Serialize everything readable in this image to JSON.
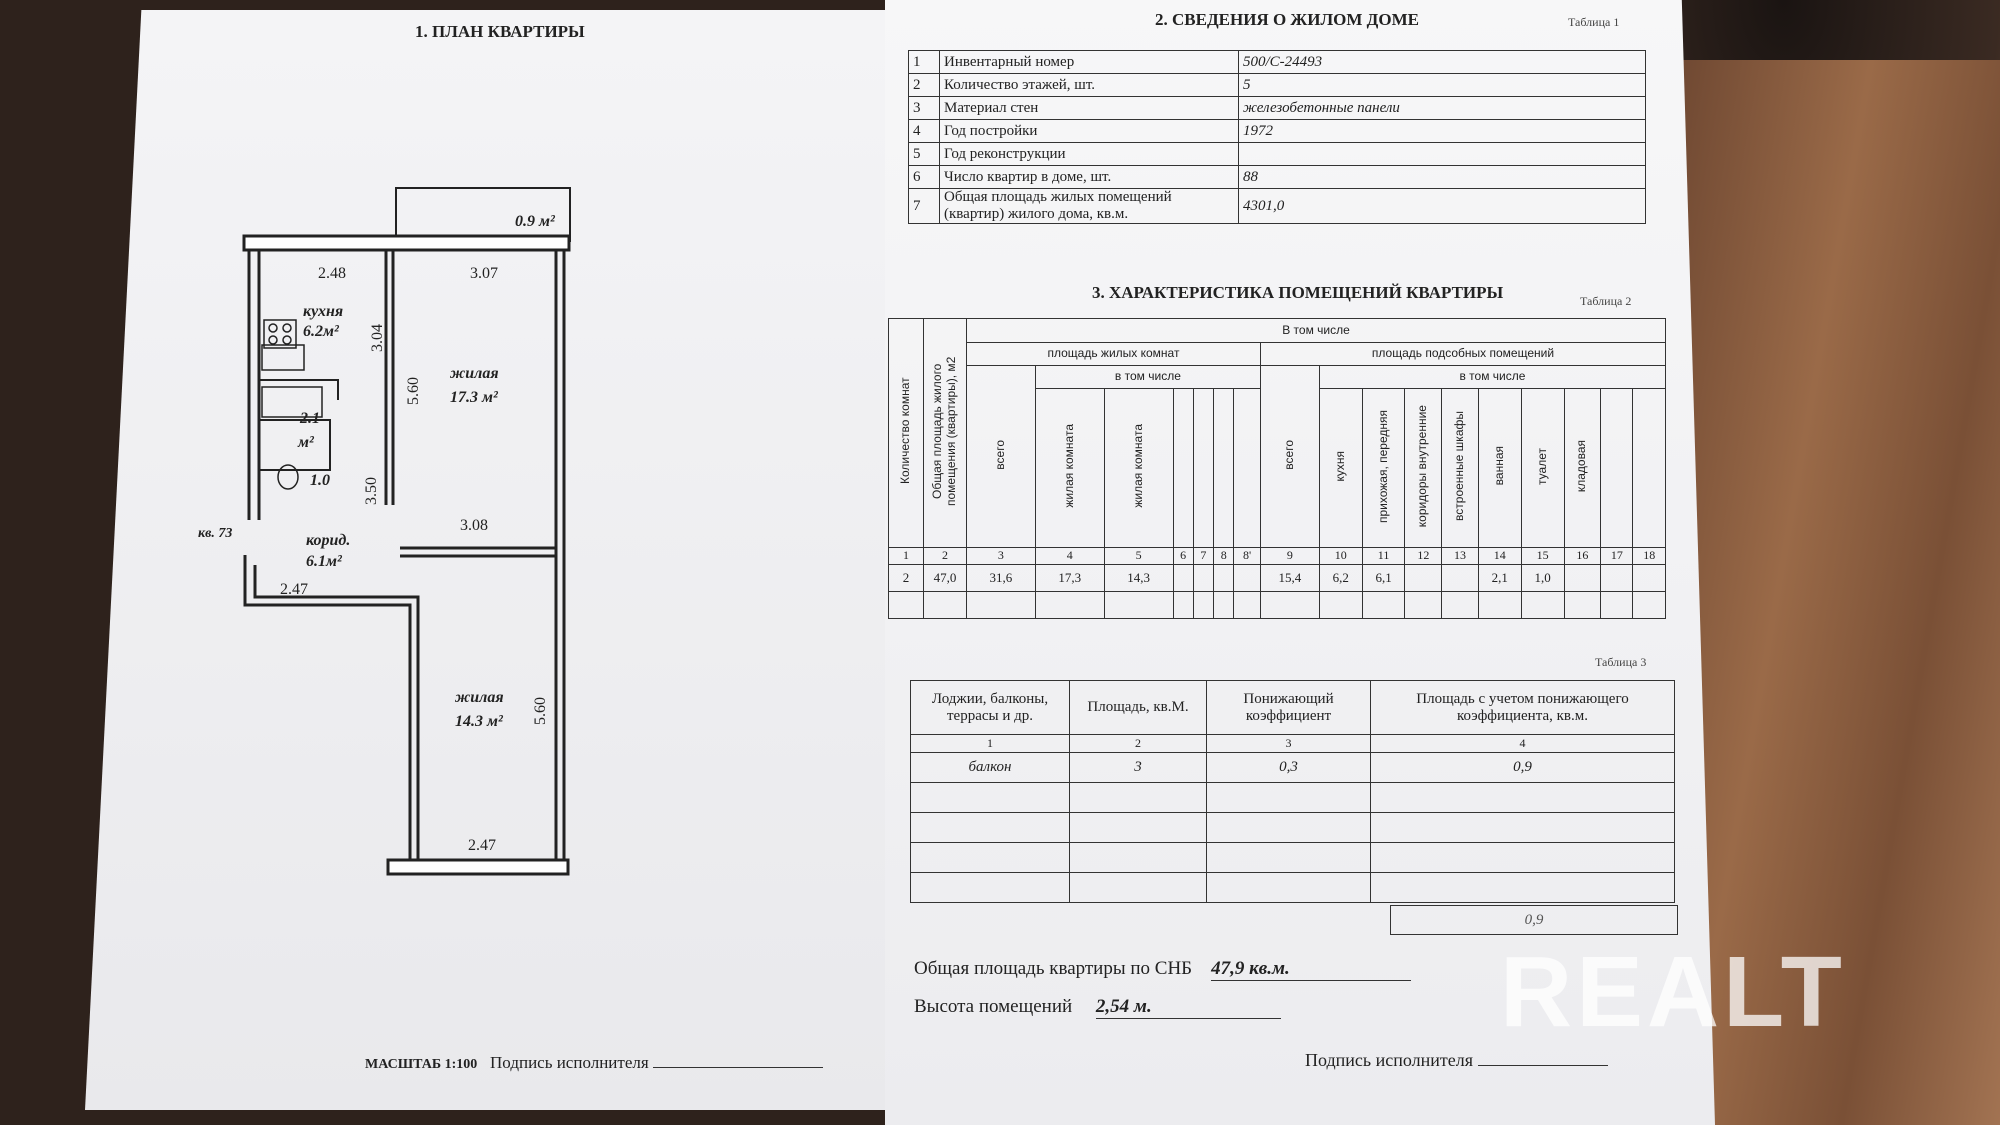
{
  "plan_page": {
    "title": "1. ПЛАН КВАРТИРЫ",
    "scale": "МАСШТАБ 1:100",
    "signature_label": "Подпись исполнителя",
    "plan": {
      "balcony_area": "0.9 м²",
      "kitchen_name": "кухня",
      "kitchen_area": "6.2м²",
      "living1_name": "жилая",
      "living1_area": "17.3 м²",
      "bath_area": "2.1",
      "bath_unit": "м²",
      "toilet_area": "1.0",
      "corridor_name": "корид.",
      "corridor_area": "6.1м²",
      "apt_number": "кв. 73",
      "living2_name": "жилая",
      "living2_area": "14.3 м²",
      "dims": {
        "kitchen_w": "2.48",
        "living1_top": "3.07",
        "kitchen_h": "3.04",
        "living1_h": "5.60",
        "bath_h": "3.50",
        "living1_bottom": "3.08",
        "corridor_w": "2.47",
        "living2_h": "5.60",
        "living2_w": "2.47"
      }
    }
  },
  "table1": {
    "heading": "2. СВЕДЕНИЯ О ЖИЛОМ ДОМЕ",
    "note": "Таблица 1",
    "rows": [
      {
        "n": "1",
        "label": "Инвентарный номер",
        "value": "500/С-24493"
      },
      {
        "n": "2",
        "label": "Количество этажей, шт.",
        "value": "5"
      },
      {
        "n": "3",
        "label": "Материал стен",
        "value": "железобетонные панели"
      },
      {
        "n": "4",
        "label": "Год постройки",
        "value": "1972"
      },
      {
        "n": "5",
        "label": "Год реконструкции",
        "value": ""
      },
      {
        "n": "6",
        "label": "Число квартир в доме, шт.",
        "value": "88"
      },
      {
        "n": "7",
        "label": "Общая площадь жилых помещений (квартир) жилого дома, кв.м.",
        "value": "4301,0"
      }
    ]
  },
  "table2": {
    "heading": "3. ХАРАКТЕРИСТИКА ПОМЕЩЕНИЙ КВАРТИРЫ",
    "note": "Таблица 2",
    "h_rooms": "Количество комнат",
    "h_total": "Общая площадь жилого помещения (квартиры), м2",
    "h_incl": "В том числе",
    "h_living": "площадь жилых комнат",
    "h_aux": "площадь подсобных помещений",
    "h_incl2": "в том числе",
    "h_incl3": "в том числе",
    "h_all1": "всего",
    "h_all2": "всего",
    "living_cols": [
      "жилая комната",
      "жилая комната",
      "",
      "",
      "",
      ""
    ],
    "aux_cols": [
      "кухня",
      "прихожая, передняя",
      "коридоры внутренние",
      "встроенные шкафы",
      "ванная",
      "туалет",
      "кладовая",
      "",
      ""
    ],
    "numbers": [
      "1",
      "2",
      "3",
      "4",
      "5",
      "6",
      "7",
      "8",
      "8'",
      "9",
      "10",
      "11",
      "12",
      "13",
      "14",
      "15",
      "16",
      "17",
      "18"
    ],
    "data": [
      "2",
      "47,0",
      "31,6",
      "17,3",
      "14,3",
      "",
      "",
      "",
      "",
      "15,4",
      "6,2",
      "6,1",
      "",
      "",
      "2,1",
      "1,0",
      "",
      "",
      ""
    ]
  },
  "table3": {
    "note": "Таблица 3",
    "headers": [
      "Лоджии, балконы, террасы и др.",
      "Площадь, кв.М.",
      "Понижающий коэффициент",
      "Площадь с учетом понижающего коэффициента, кв.м."
    ],
    "numbers": [
      "1",
      "2",
      "3",
      "4"
    ],
    "rows": [
      [
        "балкон",
        "3",
        "0,3",
        "0,9"
      ],
      [
        "",
        "",
        "",
        ""
      ],
      [
        "",
        "",
        "",
        ""
      ],
      [
        "",
        "",
        "",
        ""
      ],
      [
        "",
        "",
        "",
        ""
      ]
    ],
    "total": "0,9"
  },
  "summary": {
    "total_label": "Общая площадь квартиры по СНБ",
    "total_value": "47,9 кв.м.",
    "height_label": "Высота помещений",
    "height_value": "2,54 м.",
    "signature_label": "Подпись исполнителя"
  },
  "watermark": "REALT"
}
